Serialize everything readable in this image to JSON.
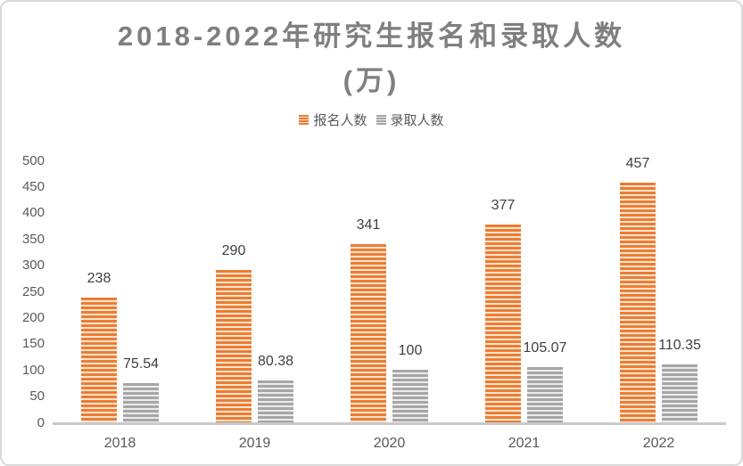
{
  "title": {
    "line1": "2018-2022年研究生报名和录取人数",
    "line2": "(万)"
  },
  "colors": {
    "series1": "#ED7D31",
    "series1_light": "#FBE4D3",
    "series2": "#A6A6A6",
    "series2_light": "#EBEBEB",
    "axis_line": "#C9C9C9",
    "axis_text": "#595959",
    "data_label_text": "#3F3F3F",
    "title_text": "#7F7F7F",
    "frame_border": "#D9D9D9"
  },
  "chart_data": {
    "type": "bar",
    "title": "2018-2022年研究生报名和录取人数(万)",
    "categories": [
      "2018",
      "2019",
      "2020",
      "2021",
      "2022"
    ],
    "series": [
      {
        "name": "报名人数",
        "color": "#ED7D31",
        "values": [
          238,
          290,
          341,
          377,
          457
        ]
      },
      {
        "name": "录取人数",
        "color": "#A6A6A6",
        "values": [
          75.54,
          80.38,
          100,
          105.07,
          110.35
        ]
      }
    ],
    "xlabel": "",
    "ylabel": "",
    "ylim": [
      0,
      500
    ],
    "yticks": [
      0,
      50,
      100,
      150,
      200,
      250,
      300,
      350,
      400,
      450,
      500
    ],
    "grid": false,
    "legend_position": "top",
    "data_labels": true,
    "bar_fill_pattern": "horizontal-stripes"
  }
}
